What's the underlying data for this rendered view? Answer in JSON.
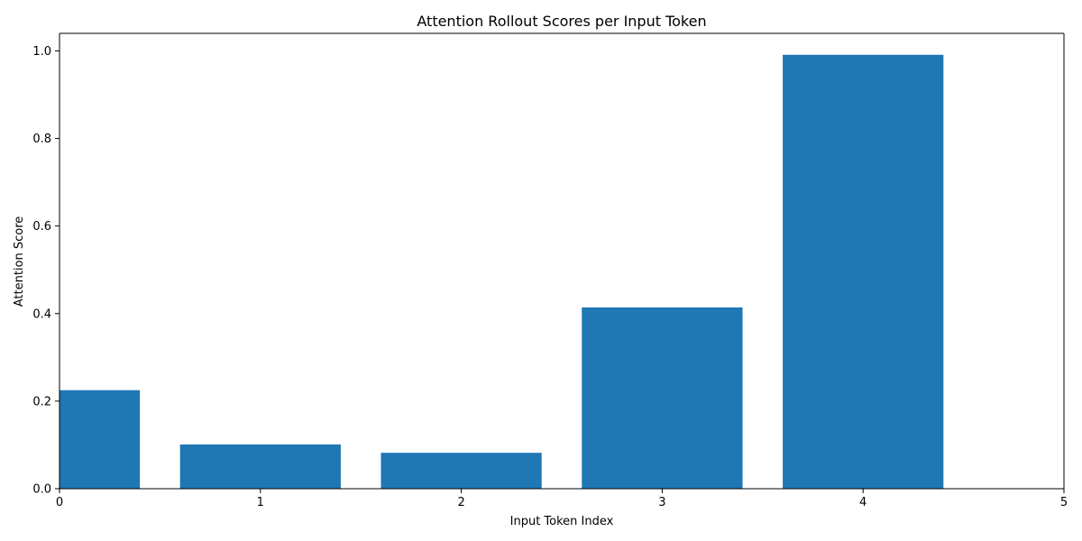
{
  "chart_data": {
    "type": "bar",
    "title": "Attention Rollout Scores per Input Token",
    "xlabel": "Input Token Index",
    "ylabel": "Attention Score",
    "x": [
      0,
      1,
      2,
      3,
      4
    ],
    "values": [
      0.225,
      0.101,
      0.082,
      0.414,
      0.991
    ],
    "bar_width": 0.8,
    "xlim": [
      0,
      5
    ],
    "ylim": [
      0,
      1.04
    ],
    "xticks": [
      0,
      1,
      2,
      3,
      4,
      5
    ],
    "yticks": [
      0.0,
      0.2,
      0.4,
      0.6,
      0.8,
      1.0
    ],
    "xtick_labels": [
      "0",
      "1",
      "2",
      "3",
      "4",
      "5"
    ],
    "ytick_labels": [
      "0.0",
      "0.2",
      "0.4",
      "0.6",
      "0.8",
      "1.0"
    ],
    "grid": false,
    "bar_color": "#1f77b4"
  }
}
